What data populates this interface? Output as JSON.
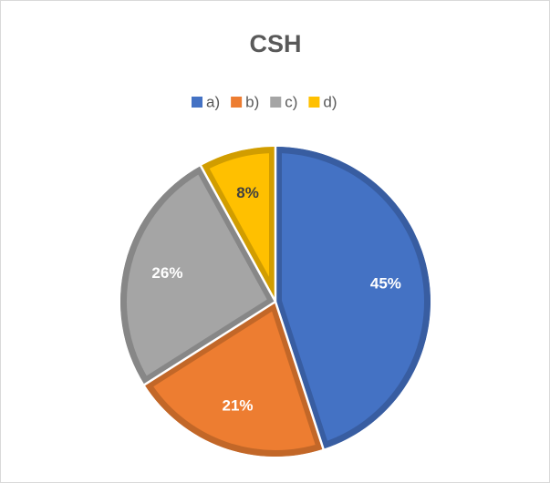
{
  "chart_data": {
    "type": "pie",
    "title": "CSH",
    "categories": [
      "a)",
      "b)",
      "c)",
      "d)"
    ],
    "values": [
      45,
      21,
      26,
      8
    ],
    "value_labels": [
      "45%",
      "21%",
      "26%",
      "8%"
    ],
    "colors": [
      "#4472c4",
      "#ed7d31",
      "#a5a5a5",
      "#ffc000"
    ],
    "legend": "top"
  }
}
